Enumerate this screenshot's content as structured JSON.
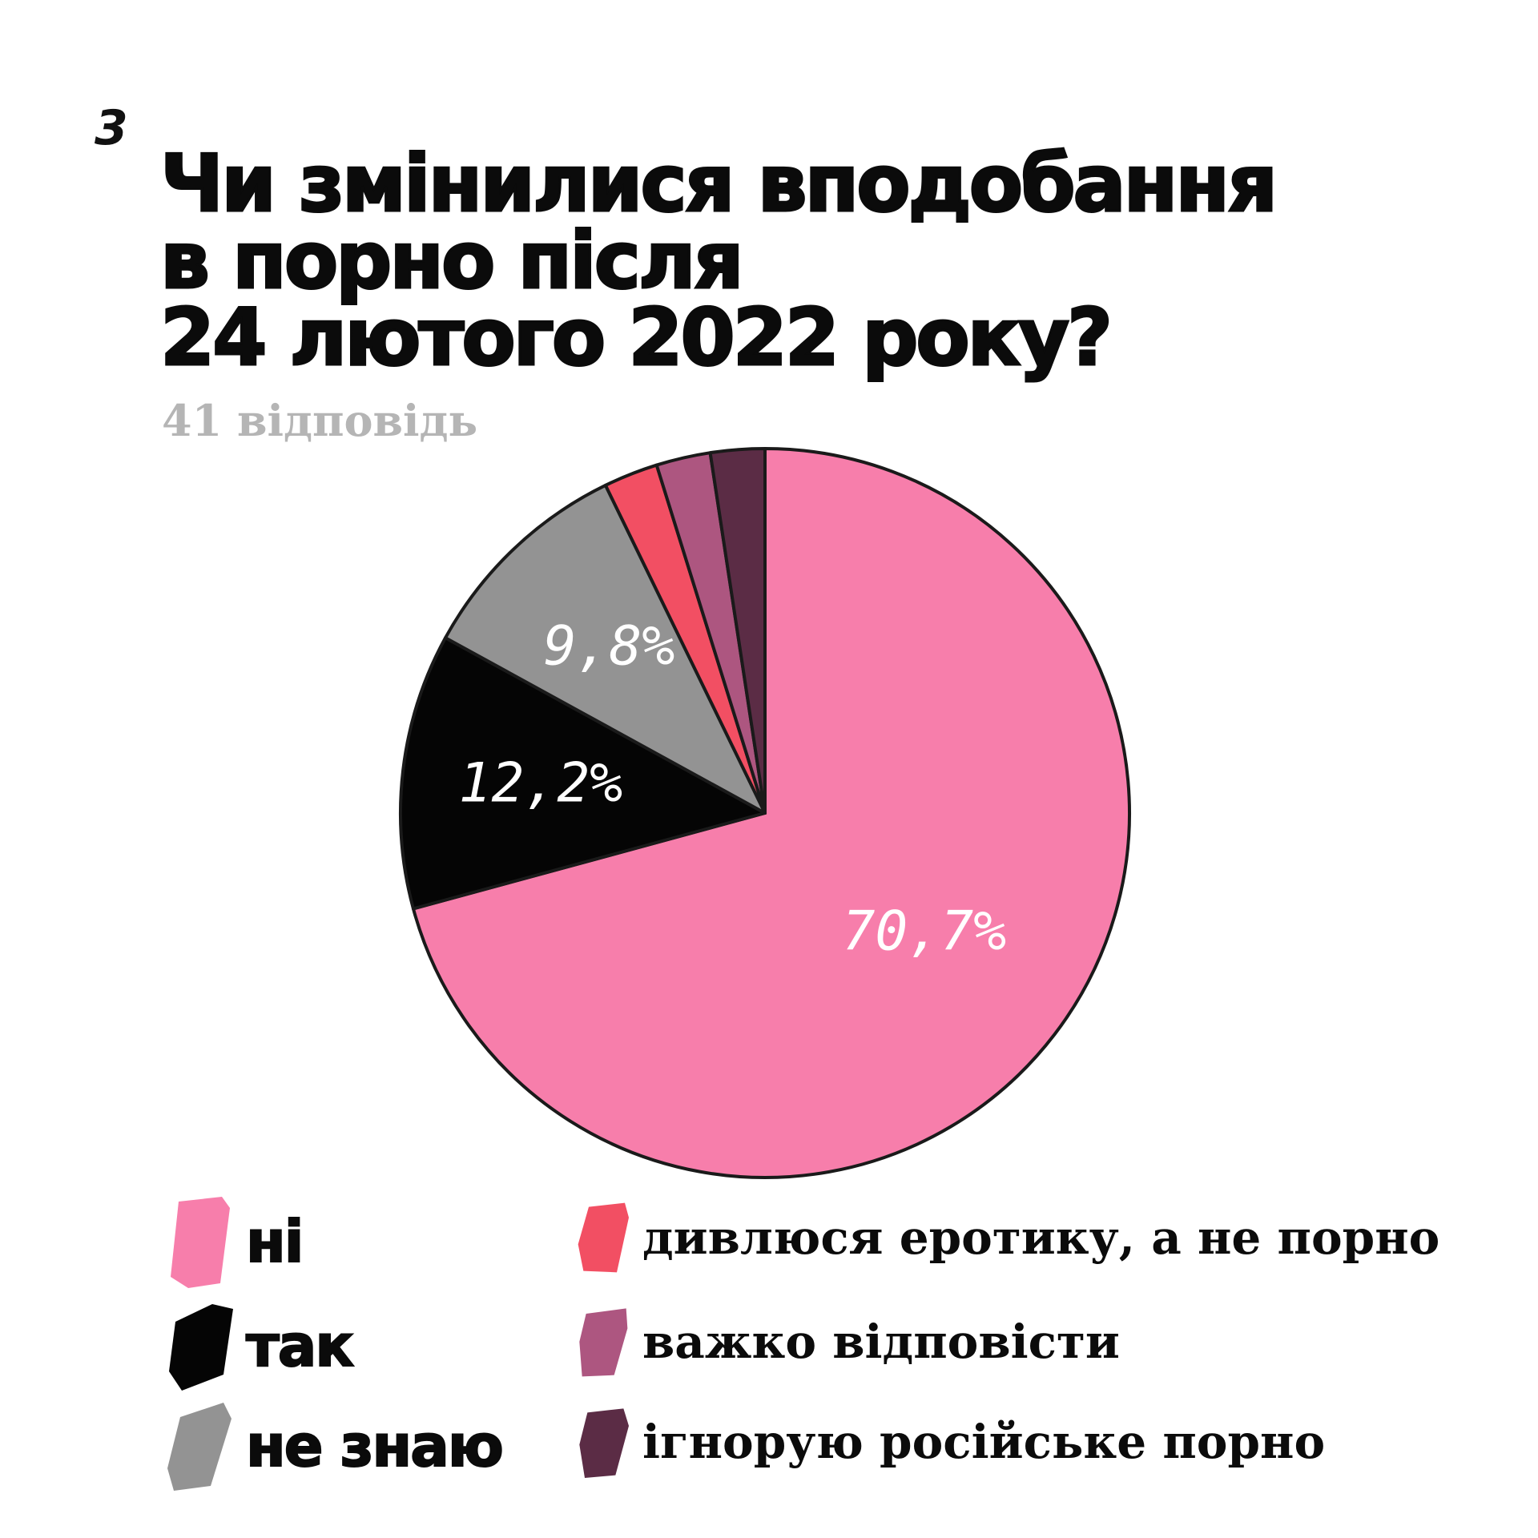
{
  "page": {
    "number": "3"
  },
  "chart_data": {
    "type": "pie",
    "title": "Чи змінилися вподобання\nв порно після\n24 лютого 2022 року?",
    "subtitle": "41 відповідь",
    "slices": [
      {
        "label": "ні",
        "value": 70.7,
        "value_label": "70,7%",
        "color": "#f77eab"
      },
      {
        "label": "так",
        "value": 12.2,
        "value_label": "12,2%",
        "color": "#050505"
      },
      {
        "label": "не знаю",
        "value": 9.8,
        "value_label": "9,8%",
        "color": "#939393"
      },
      {
        "label": "дивлюся еротику, а не порно",
        "value": 2.4,
        "value_label": "",
        "color": "#f24f63"
      },
      {
        "label": "важко відповісти",
        "value": 2.4,
        "value_label": "",
        "color": "#ad5680"
      },
      {
        "label": "ігнорую російське порно",
        "value": 2.4,
        "value_label": "",
        "color": "#5b2c45"
      }
    ],
    "legend_placement": "bottom"
  }
}
